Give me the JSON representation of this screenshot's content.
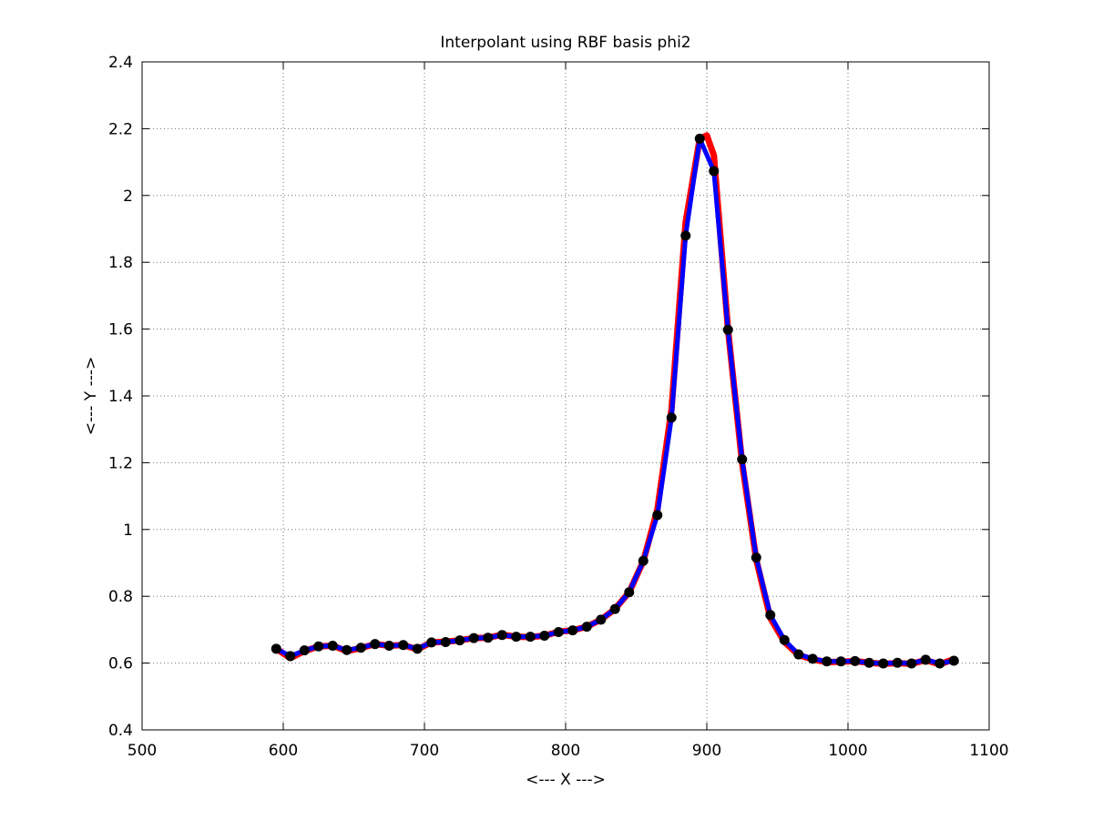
{
  "chart_data": {
    "type": "line",
    "title": "Interpolant using RBF basis phi2",
    "xlabel": "<--- X --->",
    "ylabel": "<--- Y --->",
    "xlim": [
      500,
      1100
    ],
    "ylim": [
      0.4,
      2.4
    ],
    "xticks": [
      500,
      600,
      700,
      800,
      900,
      1000,
      1100
    ],
    "yticks": [
      0.4,
      0.6,
      0.8,
      1.0,
      1.2,
      1.4,
      1.6,
      1.8,
      2.0,
      2.2,
      2.4
    ],
    "xtick_labels": [
      "500",
      "600",
      "700",
      "800",
      "900",
      "1000",
      "1100"
    ],
    "ytick_labels": [
      "0.4",
      "0.6",
      "0.8",
      "1",
      "1.2",
      "1.4",
      "1.6",
      "1.8",
      "2",
      "2.2",
      "2.4"
    ],
    "grid": true,
    "series": [
      {
        "role": "reference",
        "color": "#ff0000",
        "x": [
          595,
          605,
          615,
          625,
          635,
          645,
          655,
          665,
          675,
          685,
          695,
          705,
          715,
          725,
          735,
          745,
          755,
          765,
          775,
          785,
          795,
          805,
          815,
          825,
          835,
          845,
          855,
          865,
          875,
          885,
          895,
          900,
          905,
          915,
          925,
          935,
          945,
          955,
          965,
          975,
          985,
          995,
          1005,
          1015,
          1025,
          1035,
          1045,
          1055,
          1065,
          1075
        ],
        "y": [
          0.643,
          0.615,
          0.636,
          0.65,
          0.652,
          0.636,
          0.645,
          0.657,
          0.652,
          0.654,
          0.641,
          0.662,
          0.664,
          0.668,
          0.675,
          0.676,
          0.685,
          0.679,
          0.678,
          0.682,
          0.694,
          0.698,
          0.709,
          0.73,
          0.762,
          0.812,
          0.905,
          1.06,
          1.36,
          1.92,
          2.17,
          2.18,
          2.12,
          1.6,
          1.2,
          0.91,
          0.735,
          0.663,
          0.624,
          0.611,
          0.603,
          0.604,
          0.606,
          0.601,
          0.598,
          0.6,
          0.598,
          0.609,
          0.596,
          0.612
        ]
      },
      {
        "role": "interpolant",
        "color": "#0000ff",
        "x": [
          595,
          605,
          615,
          625,
          635,
          645,
          655,
          665,
          675,
          685,
          695,
          705,
          715,
          725,
          735,
          745,
          755,
          765,
          775,
          785,
          795,
          805,
          815,
          825,
          835,
          845,
          855,
          865,
          875,
          885,
          895,
          905,
          915,
          925,
          935,
          945,
          955,
          965,
          975,
          985,
          995,
          1005,
          1015,
          1025,
          1035,
          1045,
          1055,
          1065,
          1075
        ],
        "y": [
          0.643,
          0.621,
          0.638,
          0.65,
          0.652,
          0.639,
          0.646,
          0.657,
          0.652,
          0.654,
          0.643,
          0.662,
          0.663,
          0.668,
          0.675,
          0.676,
          0.684,
          0.679,
          0.679,
          0.682,
          0.693,
          0.698,
          0.709,
          0.73,
          0.762,
          0.812,
          0.906,
          1.043,
          1.335,
          1.88,
          2.17,
          2.073,
          1.598,
          1.21,
          0.916,
          0.744,
          0.669,
          0.626,
          0.613,
          0.605,
          0.605,
          0.606,
          0.601,
          0.599,
          0.601,
          0.599,
          0.61,
          0.599,
          0.607
        ]
      },
      {
        "role": "data-points",
        "color": "#000000",
        "marker": "circle",
        "x": [
          595,
          605,
          615,
          625,
          635,
          645,
          655,
          665,
          675,
          685,
          695,
          705,
          715,
          725,
          735,
          745,
          755,
          765,
          775,
          785,
          795,
          805,
          815,
          825,
          835,
          845,
          855,
          865,
          875,
          885,
          895,
          905,
          915,
          925,
          935,
          945,
          955,
          965,
          975,
          985,
          995,
          1005,
          1015,
          1025,
          1035,
          1045,
          1055,
          1065,
          1075
        ],
        "y": [
          0.643,
          0.621,
          0.638,
          0.65,
          0.652,
          0.639,
          0.646,
          0.657,
          0.652,
          0.654,
          0.643,
          0.662,
          0.663,
          0.668,
          0.675,
          0.676,
          0.684,
          0.679,
          0.679,
          0.682,
          0.693,
          0.698,
          0.709,
          0.73,
          0.762,
          0.812,
          0.906,
          1.043,
          1.335,
          1.88,
          2.17,
          2.073,
          1.598,
          1.21,
          0.916,
          0.744,
          0.669,
          0.626,
          0.613,
          0.605,
          0.605,
          0.606,
          0.601,
          0.599,
          0.601,
          0.599,
          0.61,
          0.599,
          0.607
        ]
      }
    ]
  }
}
